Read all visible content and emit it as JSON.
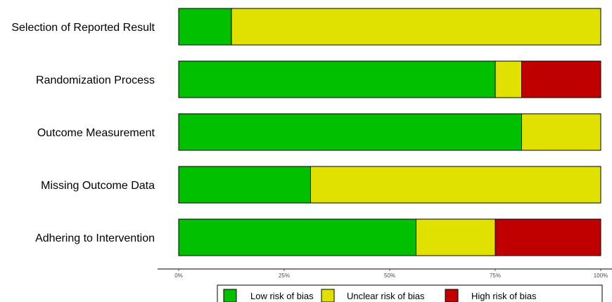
{
  "chart_data": {
    "type": "bar",
    "orientation": "horizontal",
    "stacked": true,
    "normalized": true,
    "categories": [
      "Selection of Reported Result",
      "Randomization Process",
      "Outcome Measurement",
      "Missing Outcome Data",
      "Adhering to Intervention"
    ],
    "series": [
      {
        "name": "Low risk of bias",
        "color": "#00c000",
        "values": [
          12.5,
          75,
          81.25,
          31.25,
          56.25
        ]
      },
      {
        "name": "Unclear risk of bias",
        "color": "#e1e100",
        "values": [
          87.5,
          6.25,
          18.75,
          68.75,
          18.75
        ]
      },
      {
        "name": "High risk of bias",
        "color": "#c00000",
        "values": [
          0,
          18.75,
          0,
          0,
          25
        ]
      }
    ],
    "x_ticks": [
      "0%",
      "25%",
      "50%",
      "75%",
      "100%"
    ],
    "xlim": [
      0,
      100
    ],
    "grid": false,
    "legend_position": "bottom",
    "title": "",
    "xlabel": "",
    "ylabel": ""
  }
}
